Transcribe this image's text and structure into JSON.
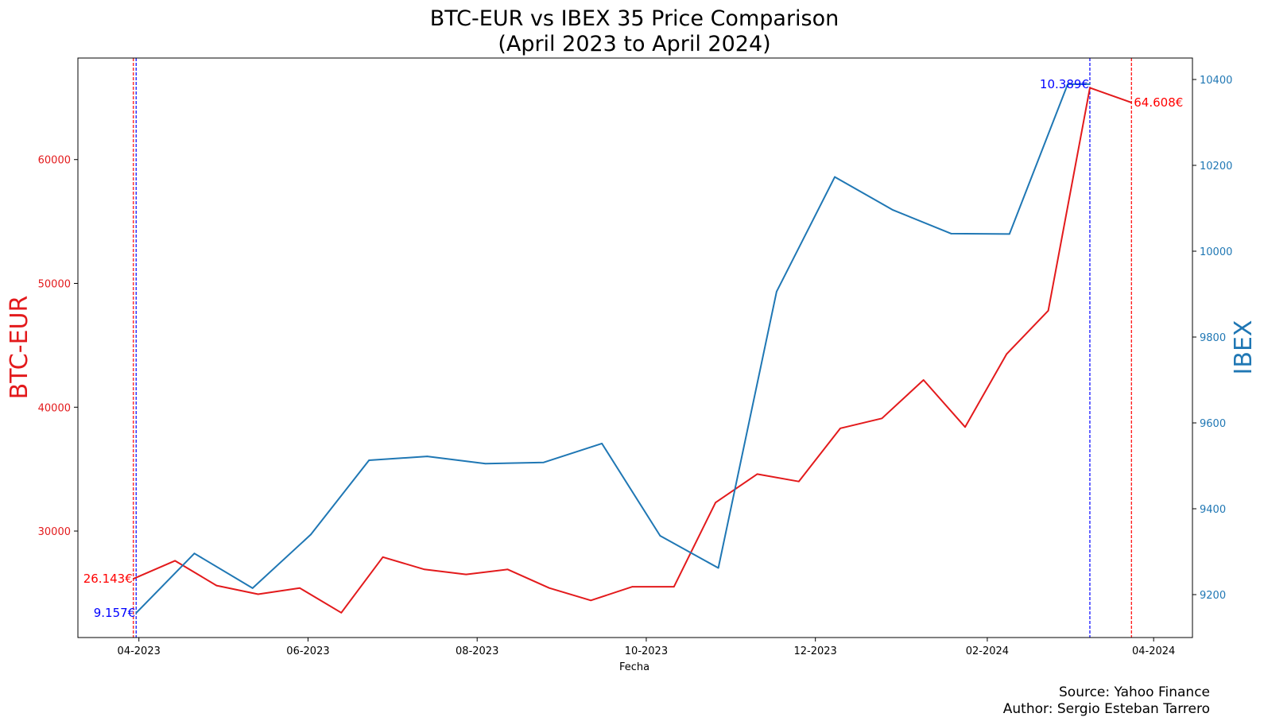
{
  "chart_data": {
    "type": "line",
    "title": [
      "BTC-EUR vs IBEX 35 Price Comparison",
      "(April 2023 to April 2024)"
    ],
    "xlabel": "Fecha",
    "x_ticks": [
      "04-2023",
      "06-2023",
      "08-2023",
      "10-2023",
      "12-2023",
      "02-2024",
      "04-2024"
    ],
    "x_tick_dates": [
      "2023-04-01",
      "2023-06-01",
      "2023-08-01",
      "2023-10-01",
      "2023-12-01",
      "2024-02-01",
      "2024-04-01"
    ],
    "xlim": [
      "2023-03-10",
      "2024-04-15"
    ],
    "grid": false,
    "y_left": {
      "label": "BTC-EUR",
      "color": "#e31a1c",
      "ylim": [
        21400,
        68200
      ],
      "ticks": [
        30000,
        40000,
        50000,
        60000
      ],
      "tick_labels": [
        "30000",
        "40000",
        "50000",
        "60000"
      ]
    },
    "y_right": {
      "label": "IBEX",
      "color": "#1f77b4",
      "ylim": [
        9100,
        10450
      ],
      "ticks": [
        9200,
        9400,
        9600,
        9800,
        10000,
        10200,
        10400
      ],
      "tick_labels": [
        "9200",
        "9400",
        "9600",
        "9800",
        "10000",
        "10200",
        "10400"
      ]
    },
    "series": [
      {
        "name": "BTC-EUR",
        "axis": "left",
        "color": "#e31a1c",
        "x": [
          "2023-03-30",
          "2023-04-14",
          "2023-04-29",
          "2023-05-14",
          "2023-05-29",
          "2023-06-13",
          "2023-06-28",
          "2023-07-13",
          "2023-07-28",
          "2023-08-12",
          "2023-08-27",
          "2023-09-11",
          "2023-09-26",
          "2023-10-11",
          "2023-10-26",
          "2023-11-10",
          "2023-11-25",
          "2023-12-10",
          "2023-12-25",
          "2024-01-09",
          "2024-01-24",
          "2024-02-08",
          "2024-02-23",
          "2024-03-09",
          "2024-03-24"
        ],
        "values": [
          26143,
          27600,
          25600,
          24900,
          25400,
          23400,
          27900,
          26900,
          26500,
          26900,
          25400,
          24400,
          25500,
          25500,
          32300,
          34600,
          34000,
          38300,
          39100,
          42200,
          38400,
          44300,
          47800,
          65800,
          64608
        ]
      },
      {
        "name": "IBEX",
        "axis": "right",
        "color": "#1f77b4",
        "x": [
          "2023-03-31",
          "2023-04-21",
          "2023-05-12",
          "2023-06-02",
          "2023-06-23",
          "2023-07-14",
          "2023-08-04",
          "2023-08-25",
          "2023-09-15",
          "2023-10-06",
          "2023-10-27",
          "2023-11-17",
          "2023-12-08",
          "2023-12-29",
          "2024-01-19",
          "2024-02-09",
          "2024-03-01",
          "2024-03-09"
        ],
        "values": [
          9157,
          9296,
          9215,
          9340,
          9513,
          9522,
          9505,
          9508,
          9552,
          9337,
          9262,
          9906,
          10173,
          10096,
          10041,
          10040,
          10389,
          10389
        ]
      }
    ],
    "reference_lines": [
      {
        "date": "2023-03-30",
        "color": "#ff0000",
        "style": "dashed"
      },
      {
        "date": "2023-03-31",
        "color": "#0000ff",
        "style": "dashed"
      },
      {
        "date": "2024-03-09",
        "color": "#0000ff",
        "style": "dashed"
      },
      {
        "date": "2024-03-24",
        "color": "#ff0000",
        "style": "dashed"
      }
    ],
    "annotations": [
      {
        "text": "26.143€",
        "color": "#ff0000",
        "date": "2023-03-30",
        "value": 26143,
        "axis": "left",
        "anchor": "end"
      },
      {
        "text": "9.157€",
        "color": "#0000ff",
        "date": "2023-03-31",
        "value": 9157,
        "axis": "right",
        "anchor": "end"
      },
      {
        "text": "10.389€",
        "color": "#0000ff",
        "date": "2024-03-09",
        "value": 10389,
        "axis": "right",
        "anchor": "end"
      },
      {
        "text": "64.608€",
        "color": "#ff0000",
        "date": "2024-03-24",
        "value": 64608,
        "axis": "left",
        "anchor": "start"
      }
    ]
  },
  "footer": {
    "source": "Source: Yahoo Finance",
    "author": "Author: Sergio Esteban Tarrero"
  }
}
